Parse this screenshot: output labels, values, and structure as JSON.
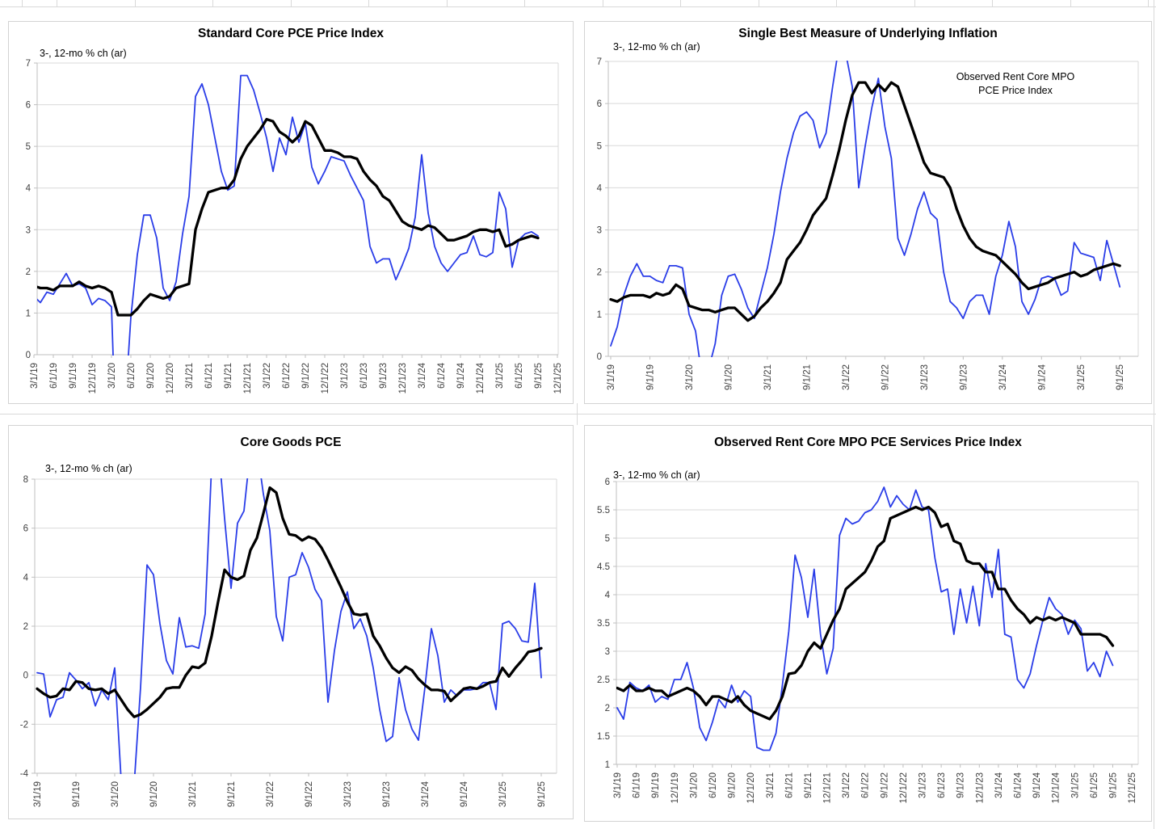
{
  "colors": {
    "series_3mo": "#2a3de8",
    "series_12mo": "#000000",
    "grid": "#d9d9d9",
    "axis": "#bfbfbf",
    "tick_text": "#3f3f3f"
  },
  "x_labels_quarterly": [
    "3/1/19",
    "6/1/19",
    "9/1/19",
    "12/1/19",
    "3/1/20",
    "6/1/20",
    "9/1/20",
    "12/1/20",
    "3/1/21",
    "6/1/21",
    "9/1/21",
    "12/1/21",
    "3/1/22",
    "6/1/22",
    "9/1/22",
    "12/1/22",
    "3/1/23",
    "6/1/23",
    "9/1/23",
    "12/1/23",
    "3/1/24",
    "6/1/24",
    "9/1/24",
    "12/1/24",
    "3/1/25",
    "6/1/25",
    "9/1/25",
    "12/1/25"
  ],
  "x_labels_semiannual": [
    "3/1/19",
    "9/1/19",
    "3/1/20",
    "9/1/20",
    "3/1/21",
    "9/1/21",
    "3/1/22",
    "9/1/22",
    "3/1/23",
    "9/1/23",
    "3/1/24",
    "9/1/24",
    "3/1/25",
    "9/1/25"
  ],
  "chart_data": [
    {
      "id": "standard-core-pce",
      "type": "line",
      "title": "Standard Core PCE Price Index",
      "subtitle": "3-, 12-mo % ch (ar)",
      "x_start": "3/1/19",
      "x_tick_every_months": 3,
      "x_tick_labels_key": "x_labels_quarterly",
      "ylim": [
        0,
        7
      ],
      "y_tick_labels": [
        "0",
        "1",
        "2",
        "3",
        "4",
        "5",
        "6",
        "7"
      ],
      "grid": true,
      "legend_position": "none",
      "annotation": null,
      "series": [
        {
          "name": "3-mo % ch (ar)",
          "color_key": "series_3mo",
          "values": [
            1.4,
            1.25,
            1.5,
            1.45,
            1.7,
            1.95,
            1.65,
            1.7,
            1.6,
            1.2,
            1.35,
            1.3,
            1.15,
            -3.5,
            -1.5,
            0.9,
            2.4,
            3.35,
            3.35,
            2.8,
            1.6,
            1.3,
            1.75,
            2.9,
            3.8,
            6.2,
            6.5,
            6.0,
            5.2,
            4.4,
            3.95,
            4.05,
            6.7,
            6.7,
            6.35,
            5.8,
            5.2,
            4.4,
            5.2,
            4.8,
            5.7,
            5.1,
            5.55,
            4.5,
            4.1,
            4.4,
            4.75,
            4.7,
            4.65,
            4.3,
            4.0,
            3.7,
            2.6,
            2.2,
            2.3,
            2.3,
            1.8,
            2.15,
            2.55,
            3.3,
            4.8,
            3.4,
            2.6,
            2.2,
            2.0,
            2.2,
            2.4,
            2.45,
            2.85,
            2.4,
            2.35,
            2.45,
            3.9,
            3.5,
            2.1,
            2.75,
            2.9,
            2.95,
            2.85
          ]
        },
        {
          "name": "12-mo % ch (ar)",
          "color_key": "series_12mo",
          "values": [
            1.65,
            1.6,
            1.6,
            1.55,
            1.65,
            1.65,
            1.65,
            1.75,
            1.65,
            1.6,
            1.65,
            1.6,
            1.5,
            0.95,
            0.95,
            0.95,
            1.1,
            1.3,
            1.45,
            1.4,
            1.35,
            1.4,
            1.6,
            1.65,
            1.7,
            3.0,
            3.5,
            3.9,
            3.95,
            4.0,
            4.0,
            4.2,
            4.7,
            5.0,
            5.2,
            5.4,
            5.65,
            5.6,
            5.35,
            5.25,
            5.1,
            5.25,
            5.6,
            5.5,
            5.2,
            4.9,
            4.9,
            4.85,
            4.75,
            4.75,
            4.7,
            4.4,
            4.2,
            4.05,
            3.8,
            3.7,
            3.45,
            3.2,
            3.1,
            3.05,
            3.0,
            3.1,
            3.05,
            2.9,
            2.75,
            2.75,
            2.8,
            2.85,
            2.95,
            3.0,
            3.0,
            2.95,
            3.0,
            2.6,
            2.65,
            2.75,
            2.8,
            2.85,
            2.8
          ]
        }
      ]
    },
    {
      "id": "single-best-measure",
      "type": "line",
      "title": "Single Best Measure of Underlying Inflation",
      "subtitle": "3-, 12-mo % ch (ar)",
      "x_start": "3/1/19",
      "x_tick_every_months": 6,
      "x_tick_labels_key": "x_labels_semiannual",
      "ylim": [
        0,
        7
      ],
      "y_tick_labels": [
        "0",
        "1",
        "2",
        "3",
        "4",
        "5",
        "6",
        "7"
      ],
      "grid": true,
      "legend_position": "none",
      "annotation": {
        "lines": [
          "Observed Rent Core MPO",
          "PCE Price Index"
        ]
      },
      "series": [
        {
          "name": "3-mo % ch (ar)",
          "color_key": "series_3mo",
          "values": [
            0.25,
            0.7,
            1.45,
            1.9,
            2.2,
            1.9,
            1.9,
            1.8,
            1.75,
            2.15,
            2.15,
            2.1,
            1.0,
            0.6,
            -0.5,
            -0.3,
            0.3,
            1.45,
            1.9,
            1.95,
            1.6,
            1.15,
            0.9,
            1.5,
            2.1,
            2.9,
            3.9,
            4.7,
            5.3,
            5.7,
            5.8,
            5.6,
            4.95,
            5.3,
            6.4,
            7.4,
            7.2,
            6.4,
            4.0,
            5.0,
            5.9,
            6.6,
            5.45,
            4.7,
            2.8,
            2.4,
            2.9,
            3.5,
            3.9,
            3.4,
            3.25,
            2.0,
            1.3,
            1.15,
            0.9,
            1.3,
            1.45,
            1.45,
            1.0,
            1.9,
            2.4,
            3.2,
            2.6,
            1.3,
            1.0,
            1.35,
            1.85,
            1.9,
            1.85,
            1.45,
            1.55,
            2.7,
            2.45,
            2.4,
            2.35,
            1.8,
            2.75,
            2.2,
            1.65
          ]
        },
        {
          "name": "12-mo % ch (ar)",
          "color_key": "series_12mo",
          "values": [
            1.35,
            1.3,
            1.4,
            1.45,
            1.45,
            1.45,
            1.4,
            1.5,
            1.45,
            1.5,
            1.7,
            1.6,
            1.2,
            1.15,
            1.1,
            1.1,
            1.05,
            1.1,
            1.15,
            1.15,
            1.0,
            0.85,
            0.95,
            1.15,
            1.3,
            1.5,
            1.75,
            2.3,
            2.5,
            2.7,
            3.0,
            3.35,
            3.55,
            3.75,
            4.3,
            4.9,
            5.6,
            6.2,
            6.5,
            6.5,
            6.25,
            6.45,
            6.3,
            6.5,
            6.4,
            5.95,
            5.5,
            5.05,
            4.6,
            4.35,
            4.3,
            4.25,
            4.0,
            3.5,
            3.1,
            2.8,
            2.6,
            2.5,
            2.45,
            2.4,
            2.25,
            2.1,
            1.95,
            1.75,
            1.6,
            1.65,
            1.7,
            1.75,
            1.85,
            1.9,
            1.95,
            2.0,
            1.9,
            1.95,
            2.05,
            2.1,
            2.15,
            2.2,
            2.15
          ]
        }
      ]
    },
    {
      "id": "core-goods-pce",
      "type": "line",
      "title": "Core Goods PCE",
      "subtitle": "3-, 12-mo % ch (ar)",
      "x_start": "3/1/19",
      "x_tick_every_months": 6,
      "x_tick_labels_key": "x_labels_semiannual",
      "ylim": [
        -4,
        8
      ],
      "y_tick_labels": [
        "-4",
        "-2",
        "0",
        "2",
        "4",
        "6",
        "8"
      ],
      "grid": true,
      "legend_position": "none",
      "annotation": null,
      "series": [
        {
          "name": "3-mo % ch (ar)",
          "color_key": "series_3mo",
          "values": [
            0.1,
            0.05,
            -1.7,
            -1.0,
            -0.9,
            0.1,
            -0.2,
            -0.55,
            -0.3,
            -1.25,
            -0.6,
            -1.0,
            0.3,
            -4.3,
            -6.0,
            -4.5,
            -0.5,
            4.5,
            4.1,
            2.1,
            0.6,
            0.05,
            2.35,
            1.15,
            1.2,
            1.1,
            2.5,
            8.6,
            9.5,
            6.4,
            3.55,
            6.2,
            6.7,
            9.2,
            9.3,
            7.4,
            5.9,
            2.4,
            1.4,
            4.0,
            4.1,
            5.0,
            4.4,
            3.5,
            3.05,
            -1.1,
            1.0,
            2.6,
            3.4,
            1.9,
            2.3,
            1.6,
            0.3,
            -1.4,
            -2.7,
            -2.5,
            -0.1,
            -1.4,
            -2.2,
            -2.65,
            -0.5,
            1.9,
            0.8,
            -1.1,
            -0.6,
            -0.85,
            -0.6,
            -0.6,
            -0.55,
            -0.3,
            -0.3,
            -1.4,
            2.1,
            2.2,
            1.9,
            1.4,
            1.35,
            3.75,
            -0.1
          ]
        },
        {
          "name": "12-mo % ch (ar)",
          "color_key": "series_12mo",
          "values": [
            -0.55,
            -0.75,
            -0.9,
            -0.85,
            -0.55,
            -0.6,
            -0.25,
            -0.3,
            -0.55,
            -0.6,
            -0.55,
            -0.75,
            -0.6,
            -1.0,
            -1.4,
            -1.7,
            -1.6,
            -1.4,
            -1.15,
            -0.9,
            -0.55,
            -0.5,
            -0.5,
            0.0,
            0.35,
            0.3,
            0.5,
            1.6,
            3.0,
            4.3,
            4.0,
            3.9,
            4.05,
            5.1,
            5.6,
            6.6,
            7.65,
            7.45,
            6.4,
            5.75,
            5.7,
            5.5,
            5.65,
            5.55,
            5.2,
            4.7,
            4.15,
            3.6,
            3.0,
            2.5,
            2.45,
            2.5,
            1.6,
            1.2,
            0.7,
            0.3,
            0.1,
            0.35,
            0.2,
            -0.15,
            -0.4,
            -0.6,
            -0.6,
            -0.65,
            -1.05,
            -0.8,
            -0.55,
            -0.5,
            -0.55,
            -0.45,
            -0.3,
            -0.25,
            0.3,
            -0.05,
            0.3,
            0.6,
            0.95,
            1.0,
            1.1
          ]
        }
      ]
    },
    {
      "id": "observed-rent-core-mpo-services",
      "type": "line",
      "title": "Observed Rent Core MPO PCE Services Price Index",
      "subtitle": "3-, 12-mo % ch (ar)",
      "x_start": "3/1/19",
      "x_tick_every_months": 3,
      "x_tick_labels_key": "x_labels_quarterly",
      "ylim": [
        1,
        6
      ],
      "y_tick_labels": [
        "1",
        "1.5",
        "2",
        "2.5",
        "3",
        "3.5",
        "4",
        "4.5",
        "5",
        "5.5",
        "6"
      ],
      "grid": true,
      "legend_position": "none",
      "annotation": null,
      "series": [
        {
          "name": "3-mo % ch (ar)",
          "color_key": "series_3mo",
          "values": [
            2.0,
            1.8,
            2.45,
            2.35,
            2.3,
            2.4,
            2.1,
            2.2,
            2.15,
            2.5,
            2.5,
            2.8,
            2.35,
            1.65,
            1.42,
            1.75,
            2.15,
            2.0,
            2.4,
            2.1,
            2.3,
            2.2,
            1.3,
            1.25,
            1.25,
            1.55,
            2.4,
            3.35,
            4.7,
            4.3,
            3.6,
            4.45,
            3.3,
            2.6,
            3.05,
            5.05,
            5.35,
            5.25,
            5.3,
            5.45,
            5.5,
            5.65,
            5.9,
            5.55,
            5.75,
            5.6,
            5.5,
            5.85,
            5.55,
            5.5,
            4.65,
            4.05,
            4.1,
            3.3,
            4.1,
            3.5,
            4.15,
            3.45,
            4.55,
            3.95,
            4.8,
            3.3,
            3.25,
            2.5,
            2.35,
            2.6,
            3.1,
            3.55,
            3.95,
            3.75,
            3.65,
            3.3,
            3.55,
            3.4,
            2.65,
            2.8,
            2.55,
            3.0,
            2.75
          ]
        },
        {
          "name": "12-mo % ch (ar)",
          "color_key": "series_12mo",
          "values": [
            2.35,
            2.3,
            2.4,
            2.3,
            2.3,
            2.35,
            2.3,
            2.3,
            2.2,
            2.25,
            2.3,
            2.35,
            2.3,
            2.2,
            2.05,
            2.2,
            2.2,
            2.15,
            2.1,
            2.2,
            2.05,
            1.95,
            1.9,
            1.85,
            1.8,
            1.95,
            2.2,
            2.6,
            2.62,
            2.75,
            3.0,
            3.15,
            3.05,
            3.3,
            3.55,
            3.75,
            4.1,
            4.2,
            4.3,
            4.4,
            4.6,
            4.85,
            4.95,
            5.35,
            5.4,
            5.45,
            5.5,
            5.55,
            5.5,
            5.55,
            5.45,
            5.2,
            5.25,
            4.95,
            4.9,
            4.6,
            4.55,
            4.55,
            4.4,
            4.4,
            4.1,
            4.1,
            3.9,
            3.75,
            3.65,
            3.5,
            3.6,
            3.55,
            3.6,
            3.55,
            3.6,
            3.55,
            3.5,
            3.3,
            3.3,
            3.3,
            3.3,
            3.25,
            3.1
          ]
        }
      ]
    }
  ]
}
